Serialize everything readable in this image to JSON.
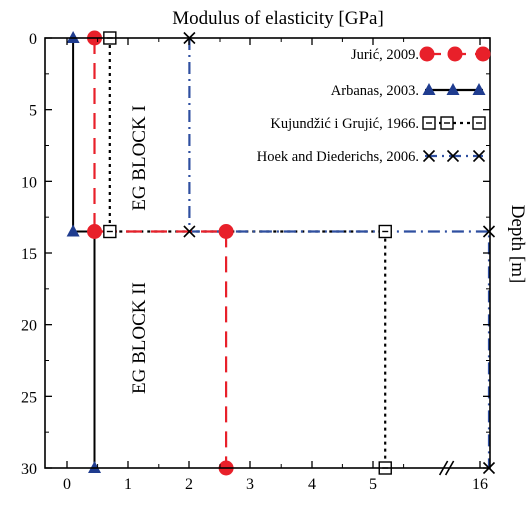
{
  "chart_data": {
    "type": "line",
    "title": "Modulus of elasticity [GPa]",
    "xlabel": "",
    "ylabel": "Depth [m]",
    "x_ticks": [
      "0",
      "1",
      "2",
      "3",
      "4",
      "5",
      "16"
    ],
    "y_ticks": [
      "0",
      "5",
      "10",
      "15",
      "20",
      "25",
      "30"
    ],
    "ylim": [
      0,
      30
    ],
    "y_inverted": true,
    "x_axis_position": "bottom",
    "y_axis_label_position": "right",
    "x_axis_break_between": [
      "5",
      "16"
    ],
    "grid": false,
    "legend_position": "top-right",
    "annotations": [
      "EG BLOCK I",
      "EG BLOCK II"
    ],
    "series": [
      {
        "name": "Jurić, 2009.",
        "color": "#e8202a",
        "line_style": "long-dash",
        "marker": "filled-circle",
        "points": [
          {
            "x": 0.45,
            "y": 0,
            "marker": true
          },
          {
            "x": 0.45,
            "y": 13.5,
            "marker": true
          },
          {
            "x": 2.6,
            "y": 13.5,
            "marker": true
          },
          {
            "x": 2.6,
            "y": 30,
            "marker": true
          }
        ]
      },
      {
        "name": "Arbanas, 2003.",
        "color": "#1f3c8f",
        "line_color": "#000000",
        "line_style": "solid",
        "marker": "filled-triangle",
        "points": [
          {
            "x": 0.1,
            "y": 0,
            "marker": true
          },
          {
            "x": 0.1,
            "y": 13.5,
            "marker": true
          },
          {
            "x": 0.45,
            "y": 13.5,
            "marker": false
          },
          {
            "x": 0.45,
            "y": 30,
            "marker": true
          }
        ]
      },
      {
        "name": "Kujundžić i Grujić, 1966.",
        "color": "#000000",
        "line_style": "dotted",
        "marker": "open-square-dot",
        "points": [
          {
            "x": 0.7,
            "y": 0,
            "marker": true
          },
          {
            "x": 0.7,
            "y": 13.5,
            "marker": true
          },
          {
            "x": 5.2,
            "y": 13.5,
            "marker": true
          },
          {
            "x": 5.2,
            "y": 30,
            "marker": true
          }
        ]
      },
      {
        "name": "Hoek and Diederichs, 2006.",
        "color": "#000000",
        "line_color": "#2f4fa0",
        "line_style": "dash-dot",
        "marker": "x-cross",
        "points": [
          {
            "x": 2.0,
            "y": 0,
            "marker": true
          },
          {
            "x": 2.0,
            "y": 13.5,
            "marker": true
          },
          {
            "x": 16.3,
            "y": 13.5,
            "marker": true
          },
          {
            "x": 16.3,
            "y": 30,
            "marker": true
          }
        ]
      }
    ]
  }
}
